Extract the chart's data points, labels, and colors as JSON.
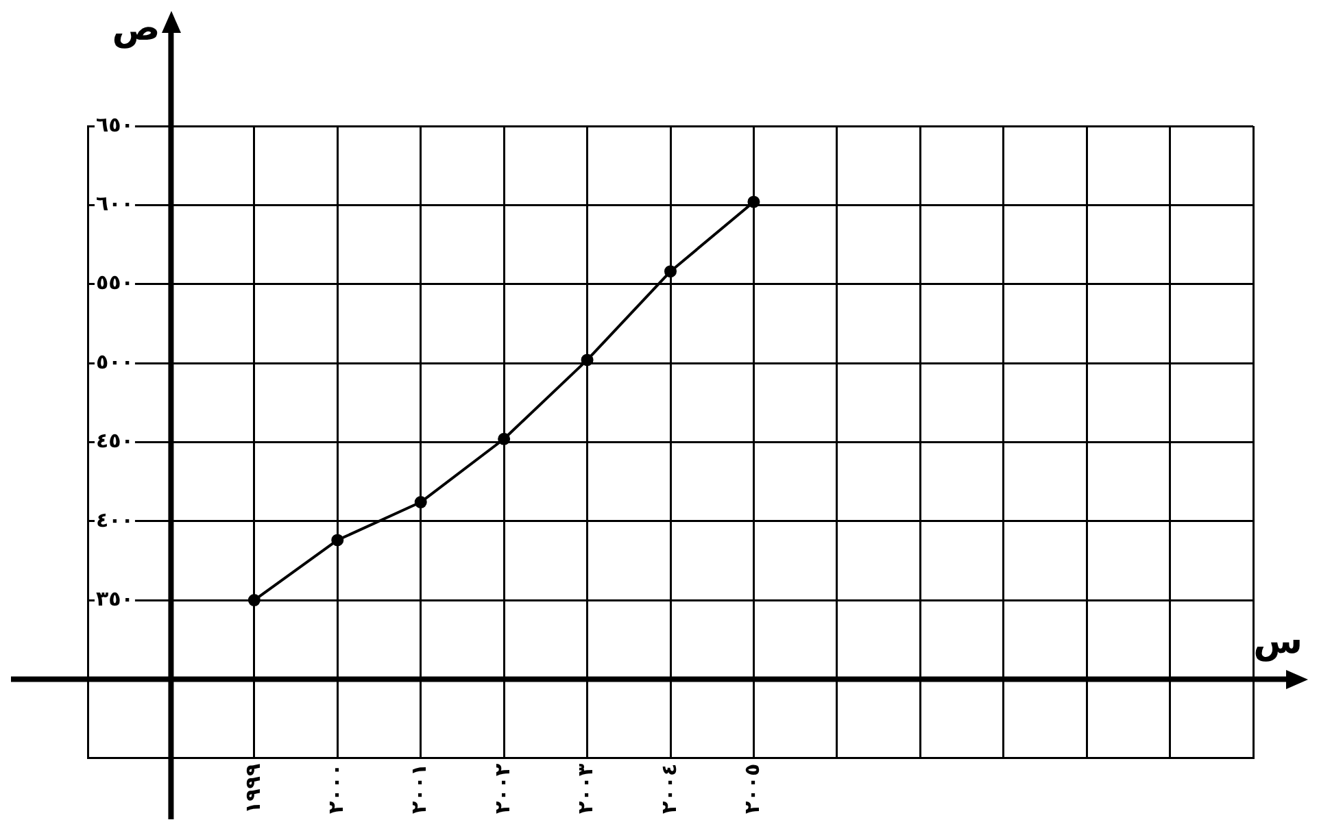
{
  "chart_data": {
    "type": "line",
    "xlabel": "س",
    "ylabel": "ص",
    "categories": [
      null,
      null,
      "١٩٩٩",
      "٢٠٠٠",
      "٢٠٠١",
      "٢٠٠٢",
      "٢٠٠٣",
      "٢٠٠٤",
      "٢٠٠٥",
      null,
      null,
      null,
      null,
      null,
      null
    ],
    "series": [
      {
        "color": "#000000",
        "values": [
          null,
          null,
          350,
          388,
          412,
          452,
          502,
          558,
          602,
          null,
          null,
          null,
          null,
          null,
          null
        ]
      }
    ],
    "ylim": [
      250,
      650
    ],
    "yticks": [
      {
        "value": 250,
        "label": null
      },
      {
        "value": 300,
        "label": null
      },
      {
        "value": 350,
        "label": "٣٥٠"
      },
      {
        "value": 400,
        "label": "٤٠٠"
      },
      {
        "value": 450,
        "label": "٤٥٠"
      },
      {
        "value": 500,
        "label": "٥٠٠"
      },
      {
        "value": 550,
        "label": "٥٥٠"
      },
      {
        "value": 600,
        "label": "٦٠٠"
      },
      {
        "value": 650,
        "label": "٦٥٠"
      }
    ],
    "grid": true,
    "marker": "circle",
    "line_style": "solid",
    "legend": false
  }
}
